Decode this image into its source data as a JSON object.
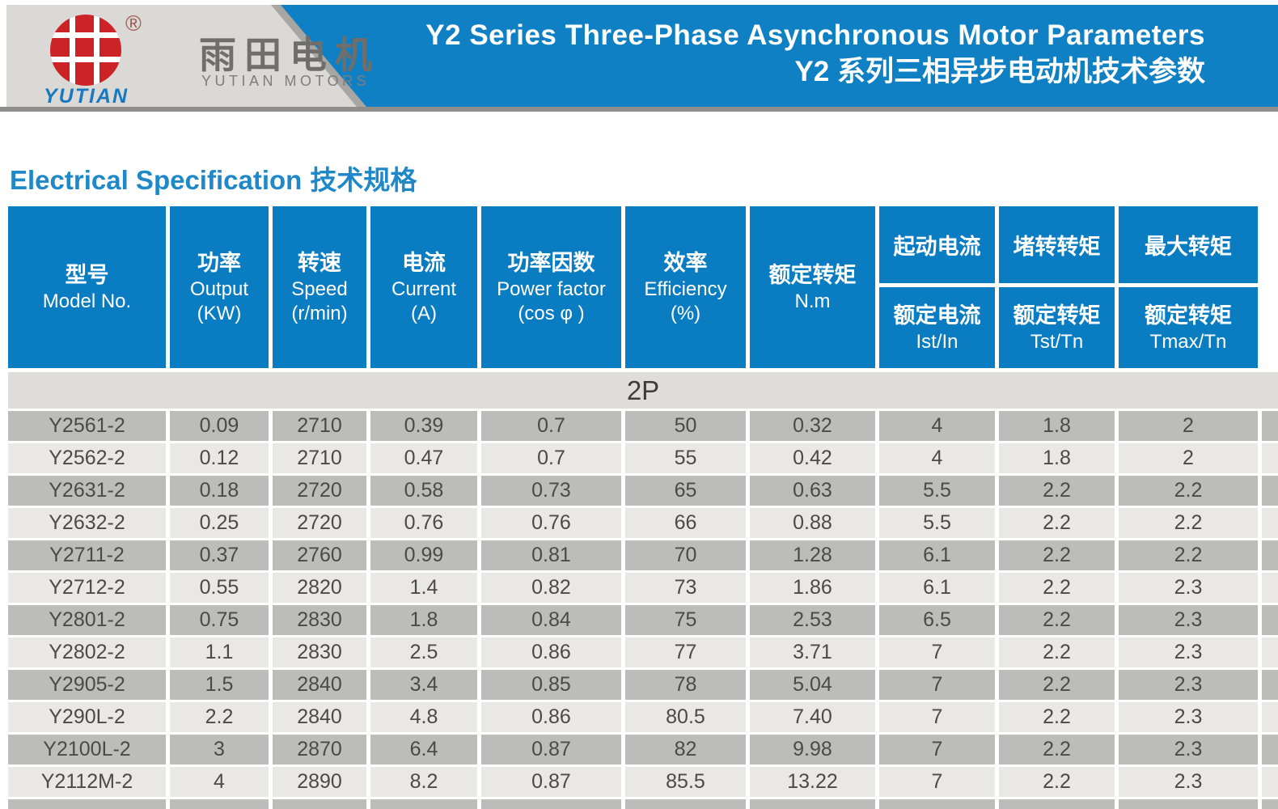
{
  "brand": {
    "registered": "®",
    "name_cn": "雨田电机",
    "name_en": "YUTIAN MOTORS",
    "logo_text": "YUTIAN"
  },
  "banner": {
    "title_en": "Y2 Series Three-Phase Asynchronous Motor Parameters",
    "title_cn": "Y2 系列三相异步电动机技术参数"
  },
  "section": {
    "heading_en": "Electrical Specification",
    "heading_cn": "技术规格"
  },
  "table": {
    "group_label": "2P",
    "columns": [
      {
        "line1": "型号",
        "line2": "Model No."
      },
      {
        "line1": "功率",
        "line2": "Output",
        "line3": "(KW)"
      },
      {
        "line1": "转速",
        "line2": "Speed",
        "line3": "(r/min)"
      },
      {
        "line1": "电流",
        "line2": "Current",
        "line3": "(A)"
      },
      {
        "line1": "功率因数",
        "line2": "Power factor",
        "line3": "(cos φ )"
      },
      {
        "line1": "效率",
        "line2": "Efficiency",
        "line3": "(%)"
      },
      {
        "line1": "额定转矩",
        "line2": "N.m"
      }
    ],
    "split_columns": [
      {
        "top": "起动电流",
        "bottom1": "额定电流",
        "bottom2": "Ist/In"
      },
      {
        "top": "堵转转矩",
        "bottom1": "额定转矩",
        "bottom2": "Tst/Tn"
      },
      {
        "top": "最大转矩",
        "bottom1": "额定转矩",
        "bottom2": "Tmax/Tn"
      }
    ],
    "rows": [
      [
        "Y2561-2",
        "0.09",
        "2710",
        "0.39",
        "0.7",
        "50",
        "0.32",
        "4",
        "1.8",
        "2"
      ],
      [
        "Y2562-2",
        "0.12",
        "2710",
        "0.47",
        "0.7",
        "55",
        "0.42",
        "4",
        "1.8",
        "2"
      ],
      [
        "Y2631-2",
        "0.18",
        "2720",
        "0.58",
        "0.73",
        "65",
        "0.63",
        "5.5",
        "2.2",
        "2.2"
      ],
      [
        "Y2632-2",
        "0.25",
        "2720",
        "0.76",
        "0.76",
        "66",
        "0.88",
        "5.5",
        "2.2",
        "2.2"
      ],
      [
        "Y2711-2",
        "0.37",
        "2760",
        "0.99",
        "0.81",
        "70",
        "1.28",
        "6.1",
        "2.2",
        "2.2"
      ],
      [
        "Y2712-2",
        "0.55",
        "2820",
        "1.4",
        "0.82",
        "73",
        "1.86",
        "6.1",
        "2.2",
        "2.3"
      ],
      [
        "Y2801-2",
        "0.75",
        "2830",
        "1.8",
        "0.84",
        "75",
        "2.53",
        "6.5",
        "2.2",
        "2.3"
      ],
      [
        "Y2802-2",
        "1.1",
        "2830",
        "2.5",
        "0.86",
        "77",
        "3.71",
        "7",
        "2.2",
        "2.3"
      ],
      [
        "Y2905-2",
        "1.5",
        "2840",
        "3.4",
        "0.85",
        "78",
        "5.04",
        "7",
        "2.2",
        "2.3"
      ],
      [
        "Y290L-2",
        "2.2",
        "2840",
        "4.8",
        "0.86",
        "80.5",
        "7.40",
        "7",
        "2.2",
        "2.3"
      ],
      [
        "Y2100L-2",
        "3",
        "2870",
        "6.4",
        "0.87",
        "82",
        "9.98",
        "7",
        "2.2",
        "2.3"
      ],
      [
        "Y2112M-2",
        "4",
        "2890",
        "8.2",
        "0.87",
        "85.5",
        "13.22",
        "7",
        "2.2",
        "2.3"
      ]
    ]
  },
  "colors": {
    "banner_blue": "#1080c4",
    "table_header_blue": "#0a7cc2",
    "heading_blue": "#1e88c9",
    "row_dark": "#bcbcba",
    "row_light": "#e9e8e5",
    "group_band": "#deddd9",
    "logo_red": "#cb2326"
  }
}
